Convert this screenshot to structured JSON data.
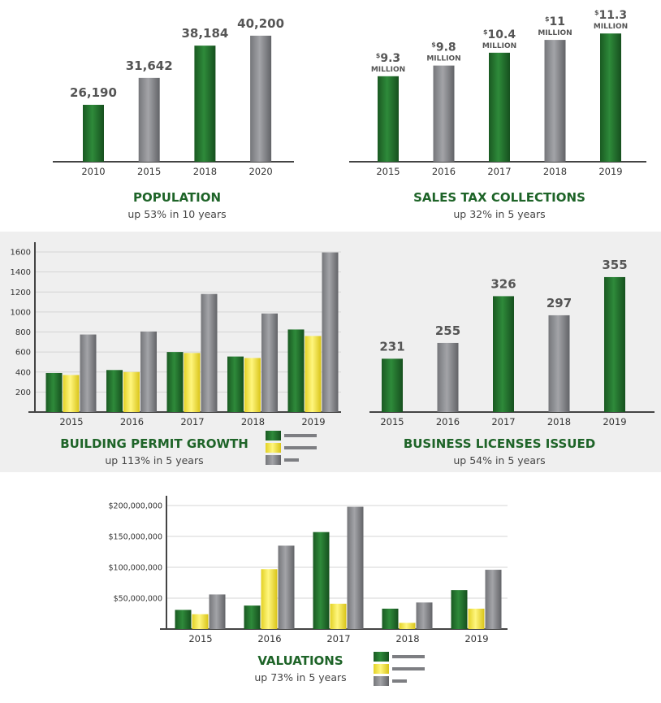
{
  "colors": {
    "green": "#1f6b2a",
    "yellow": "#f2e545",
    "gray": "#8e8f93",
    "title": "#1e6428",
    "panel_bg": "#efefef"
  },
  "chart_data": [
    {
      "id": "population",
      "type": "bar",
      "title": "POPULATION",
      "subtitle": "up 53% in 10 years",
      "categories": [
        "2010",
        "2015",
        "2018",
        "2020"
      ],
      "values": [
        26190,
        31642,
        38184,
        40200
      ],
      "data_labels": [
        "26,190",
        "31,642",
        "38,184",
        "40,200"
      ],
      "bar_colors": [
        "green",
        "gray",
        "green",
        "gray"
      ],
      "grid": false
    },
    {
      "id": "sales_tax",
      "type": "bar",
      "title": "SALES TAX COLLECTIONS",
      "subtitle": "up 32% in 5 years",
      "categories": [
        "2015",
        "2016",
        "2017",
        "2018",
        "2019"
      ],
      "values": [
        9.3,
        9.8,
        10.4,
        11,
        11.3
      ],
      "data_labels": [
        "9.3",
        "9.8",
        "10.4",
        "11",
        "11.3"
      ],
      "label_prefix": "$",
      "label_unit": "MILLION",
      "bar_colors": [
        "green",
        "gray",
        "green",
        "gray",
        "green"
      ],
      "grid": false
    },
    {
      "id": "building_permits",
      "type": "bar",
      "title": "BUILDING PERMIT GROWTH",
      "subtitle": "up 113% in 5 years",
      "categories": [
        "2015",
        "2016",
        "2017",
        "2018",
        "2019"
      ],
      "series": [
        {
          "color": "green",
          "values": [
            390,
            420,
            600,
            555,
            825
          ]
        },
        {
          "color": "yellow",
          "values": [
            370,
            400,
            590,
            540,
            760
          ]
        },
        {
          "color": "gray",
          "values": [
            775,
            805,
            1180,
            985,
            1595
          ]
        }
      ],
      "yticks": [
        "200",
        "400",
        "600",
        "800",
        "1000",
        "1200",
        "1400",
        "1600"
      ],
      "ylim": [
        0,
        1600
      ],
      "grid": true,
      "legend": "bottom-right"
    },
    {
      "id": "business_licenses",
      "type": "bar",
      "title": "BUSINESS LICENSES ISSUED",
      "subtitle": "up 54% in 5 years",
      "categories": [
        "2015",
        "2016",
        "2017",
        "2018",
        "2019"
      ],
      "values": [
        231,
        255,
        326,
        297,
        355
      ],
      "data_labels": [
        "231",
        "255",
        "326",
        "297",
        "355"
      ],
      "bar_colors": [
        "green",
        "gray",
        "green",
        "gray",
        "green"
      ],
      "grid": false
    },
    {
      "id": "valuations",
      "type": "bar",
      "title": "VALUATIONS",
      "subtitle": "up 73% in 5 years",
      "categories": [
        "2015",
        "2016",
        "2017",
        "2018",
        "2019"
      ],
      "series": [
        {
          "color": "green",
          "values": [
            31000000,
            38000000,
            157000000,
            33000000,
            63000000
          ]
        },
        {
          "color": "yellow",
          "values": [
            24000000,
            97000000,
            41000000,
            10000000,
            33000000
          ]
        },
        {
          "color": "gray",
          "values": [
            56000000,
            135000000,
            198000000,
            43000000,
            96000000
          ]
        }
      ],
      "yticks": [
        "$50,000,000",
        "$100,000,000",
        "$150,000,000",
        "$200,000,000"
      ],
      "ylim": [
        0,
        200000000
      ],
      "grid": true,
      "legend": "bottom-right"
    }
  ]
}
